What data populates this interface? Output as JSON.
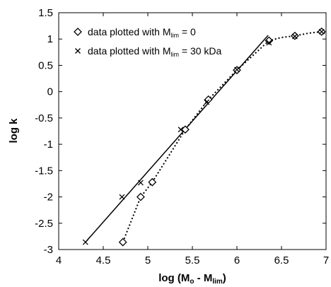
{
  "chart_data": {
    "type": "scatter",
    "xlabel": {
      "base": "log (M",
      "sub1": "o",
      "mid": " - M",
      "sub2": "lim",
      "end": ")"
    },
    "ylabel": "log k",
    "xlim": [
      4,
      7
    ],
    "ylim": [
      -3,
      1.5
    ],
    "xticks": [
      4,
      4.5,
      5,
      5.5,
      6,
      6.5,
      7
    ],
    "yticks": [
      -3,
      -2.5,
      -2,
      -1.5,
      -1,
      -0.5,
      0,
      0.5,
      1,
      1.5
    ],
    "xtick_labels": [
      "4",
      "4.5",
      "5",
      "5.5",
      "6",
      "6.5",
      "7"
    ],
    "ytick_labels": [
      "-3",
      "-2.5",
      "-2",
      "-1.5",
      "-1",
      "-0.5",
      "0",
      "0.5",
      "1",
      "1.5"
    ],
    "grid": false,
    "legend_position": "top-left",
    "series": [
      {
        "name": "data plotted with M_lim = 0",
        "legend": {
          "base": "data plotted with M",
          "sub": "lim",
          "end": " = 0"
        },
        "marker": "diamond",
        "x": [
          4.72,
          4.92,
          5.05,
          5.42,
          5.68,
          6.0,
          6.36,
          6.65,
          6.95
        ],
        "y": [
          -2.86,
          -2.0,
          -1.72,
          -0.72,
          -0.15,
          0.41,
          0.97,
          1.06,
          1.14
        ]
      },
      {
        "name": "data plotted with M_lim = 30 kDa",
        "legend": {
          "base": "data plotted with M",
          "sub": "lim",
          "end": " = 30 kDa"
        },
        "marker": "x",
        "x": [
          4.3,
          4.71,
          4.92,
          5.37,
          5.66,
          6.0,
          6.36,
          6.65,
          6.95
        ],
        "y": [
          -2.86,
          -2.0,
          -1.73,
          -0.72,
          -0.2,
          0.42,
          0.93,
          1.05,
          1.14
        ]
      }
    ],
    "lines": [
      {
        "style": "solid",
        "x": [
          4.3,
          6.35
        ],
        "y": [
          -2.86,
          1.07
        ]
      },
      {
        "style": "dotted",
        "x": [
          4.72,
          4.92,
          5.05,
          5.42,
          5.68,
          6.0,
          6.36,
          6.5,
          6.65,
          6.8,
          6.95,
          7.0
        ],
        "y": [
          -2.86,
          -2.0,
          -1.72,
          -0.72,
          -0.15,
          0.41,
          0.97,
          1.03,
          1.06,
          1.11,
          1.14,
          1.1
        ]
      }
    ]
  }
}
